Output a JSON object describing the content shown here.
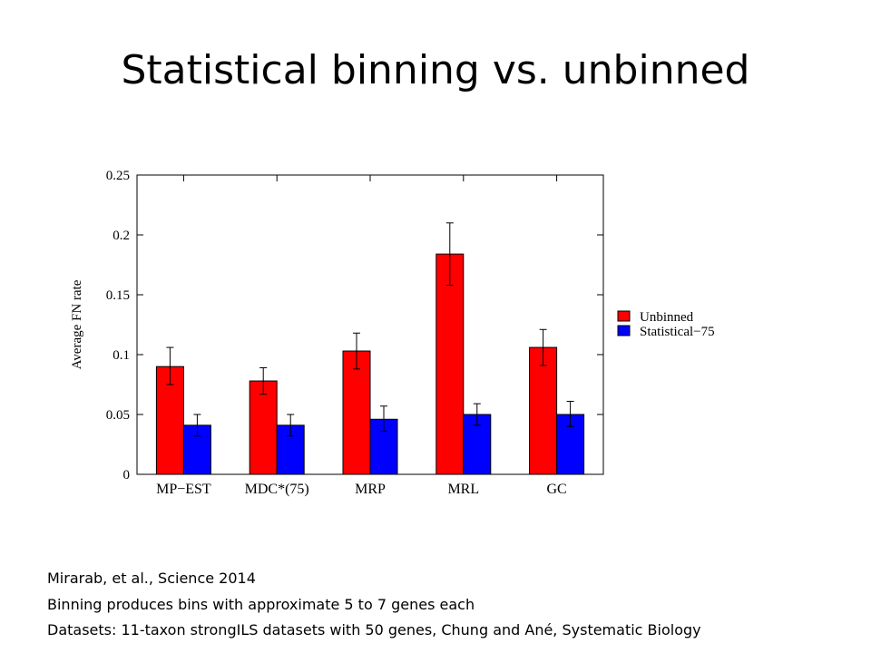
{
  "slide": {
    "title": "Statistical binning vs. unbinned",
    "captions": [
      "Mirarab, et al., Science 2014",
      "Binning produces bins with approximate 5 to 7 genes each",
      "Datasets: 11-taxon strongILS datasets with 50 genes, Chung and Ané,  Systematic Biology"
    ]
  },
  "chart_data": {
    "type": "bar",
    "ylabel": "Average FN rate",
    "ylim": [
      0,
      0.25
    ],
    "yticks": [
      "0",
      "0.05",
      "0.1",
      "0.15",
      "0.2",
      "0.25"
    ],
    "categories": [
      "MP−EST",
      "MDC*(75)",
      "MRP",
      "MRL",
      "GC"
    ],
    "series": [
      {
        "name": "Unbinned",
        "color": "#ff0000",
        "values": [
          0.09,
          0.078,
          0.103,
          0.184,
          0.106
        ],
        "err_low": [
          0.075,
          0.067,
          0.088,
          0.158,
          0.091
        ],
        "err_high": [
          0.106,
          0.089,
          0.118,
          0.21,
          0.121
        ]
      },
      {
        "name": "Statistical−75",
        "color": "#0000ff",
        "values": [
          0.041,
          0.041,
          0.046,
          0.05,
          0.05
        ],
        "err_low": [
          0.032,
          0.032,
          0.036,
          0.041,
          0.04
        ],
        "err_high": [
          0.05,
          0.05,
          0.057,
          0.059,
          0.061
        ]
      }
    ],
    "legend_position": "right",
    "grid": false
  }
}
